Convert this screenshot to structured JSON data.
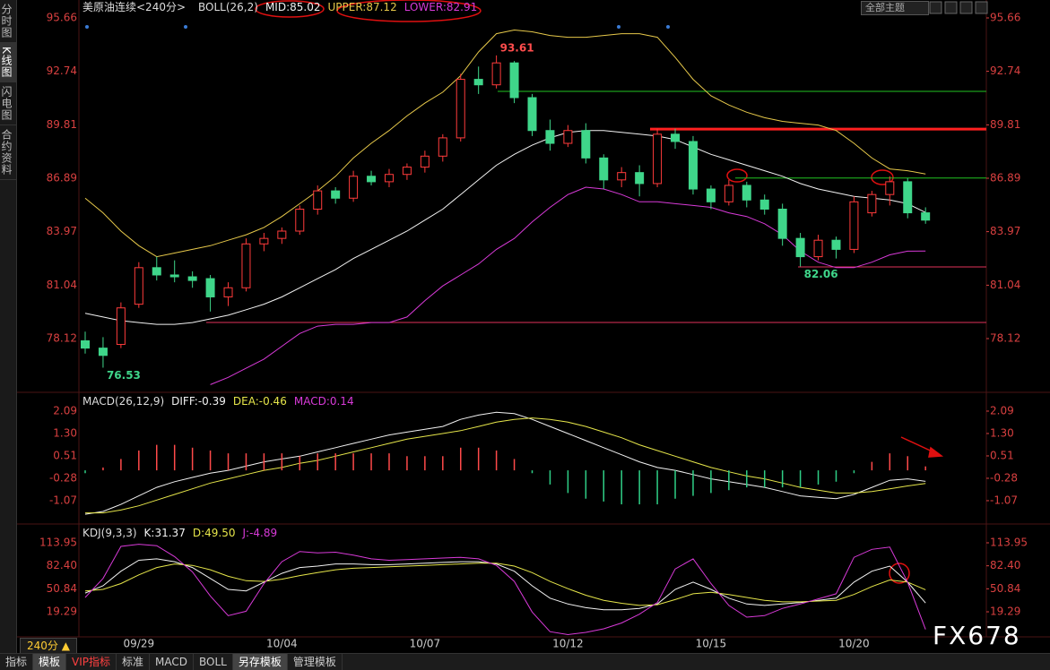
{
  "chart_data": [
    {
      "type": "candlestick",
      "title": "美原油连续<240分>",
      "indicator": "BOLL(26,2)",
      "x": [
        null,
        null,
        null,
        "09/29",
        null,
        null,
        null,
        null,
        null,
        null,
        null,
        "10/04",
        null,
        null,
        null,
        null,
        null,
        null,
        null,
        "10/07",
        null,
        null,
        null,
        null,
        null,
        null,
        null,
        "10/12",
        null,
        null,
        null,
        null,
        null,
        null,
        null,
        "10/15",
        null,
        null,
        null,
        null,
        null,
        null,
        null,
        "10/20",
        null,
        null,
        null,
        null
      ],
      "open": [
        78.0,
        77.6,
        77.8,
        80.0,
        82.0,
        81.6,
        81.5,
        81.4,
        80.4,
        80.9,
        83.3,
        83.6,
        84.0,
        85.2,
        86.2,
        85.8,
        87.0,
        86.7,
        87.1,
        87.5,
        88.1,
        89.1,
        92.3,
        92.0,
        93.2,
        91.3,
        89.5,
        88.8,
        89.5,
        88.0,
        86.8,
        87.2,
        86.6,
        89.3,
        88.9,
        86.3,
        85.6,
        86.5,
        85.7,
        85.2,
        83.6,
        82.6,
        83.5,
        83.0,
        85.0,
        86.0,
        86.7,
        85.0
      ],
      "high": [
        78.5,
        78.2,
        80.1,
        82.3,
        82.6,
        82.4,
        81.8,
        81.6,
        81.2,
        83.6,
        83.9,
        84.2,
        85.4,
        86.5,
        86.4,
        87.3,
        87.3,
        87.4,
        87.7,
        88.4,
        89.3,
        92.6,
        93.0,
        93.61,
        93.3,
        91.5,
        90.1,
        89.8,
        89.9,
        88.2,
        87.5,
        87.6,
        89.6,
        89.6,
        89.2,
        86.5,
        86.8,
        86.7,
        86.0,
        85.5,
        83.9,
        83.8,
        83.7,
        85.9,
        86.2,
        87.0,
        86.9,
        85.3
      ],
      "low": [
        77.3,
        76.53,
        77.6,
        79.8,
        81.3,
        81.2,
        80.9,
        79.6,
        79.9,
        80.7,
        82.9,
        83.3,
        83.8,
        84.9,
        85.5,
        85.6,
        86.5,
        86.4,
        86.8,
        87.2,
        87.8,
        88.9,
        91.5,
        91.8,
        91.0,
        89.2,
        88.4,
        88.6,
        87.7,
        86.3,
        86.4,
        85.9,
        86.4,
        88.5,
        86.0,
        85.2,
        85.4,
        85.3,
        84.9,
        83.2,
        82.06,
        82.4,
        82.5,
        82.8,
        84.8,
        85.4,
        84.7,
        84.4
      ],
      "close": [
        77.6,
        77.2,
        79.8,
        82.0,
        81.6,
        81.5,
        81.3,
        80.4,
        80.9,
        83.3,
        83.6,
        84.0,
        85.2,
        86.2,
        85.8,
        87.0,
        86.7,
        87.1,
        87.5,
        88.1,
        89.1,
        92.3,
        92.0,
        93.2,
        91.3,
        89.5,
        88.8,
        89.5,
        88.0,
        86.8,
        87.2,
        86.6,
        89.3,
        88.9,
        86.3,
        85.6,
        86.5,
        85.7,
        85.2,
        83.6,
        82.6,
        83.5,
        83.0,
        85.6,
        86.0,
        86.7,
        85.0,
        84.6
      ],
      "up_color": "#ff3b3b",
      "down_color": "#3fd68a",
      "high_low_labels": [
        {
          "index": 23,
          "field": "high",
          "color": "#ff4d4d"
        },
        {
          "index": 1,
          "field": "low",
          "color": "#3fd68a"
        },
        {
          "index": 40,
          "field": "low",
          "color": "#3fd68a"
        }
      ],
      "series": [
        {
          "name": "MID:",
          "color": "#f2f2f2",
          "values": [
            79.5,
            79.3,
            79.1,
            79.0,
            78.9,
            78.9,
            79.0,
            79.2,
            79.4,
            79.7,
            80.0,
            80.4,
            80.9,
            81.4,
            81.9,
            82.5,
            83.0,
            83.5,
            84.0,
            84.6,
            85.2,
            86.0,
            86.8,
            87.6,
            88.2,
            88.7,
            89.1,
            89.4,
            89.5,
            89.5,
            89.4,
            89.3,
            89.2,
            89.0,
            88.6,
            88.2,
            87.9,
            87.6,
            87.3,
            87.0,
            86.6,
            86.3,
            86.1,
            85.9,
            85.8,
            85.7,
            85.5,
            85.02
          ]
        },
        {
          "name": "UPPER:",
          "color": "#e6c84a",
          "values": [
            85.8,
            85.0,
            84.0,
            83.2,
            82.6,
            82.8,
            83.0,
            83.2,
            83.5,
            83.8,
            84.2,
            84.8,
            85.5,
            86.2,
            87.0,
            88.0,
            88.8,
            89.5,
            90.3,
            91.0,
            91.6,
            92.5,
            93.8,
            94.8,
            95.0,
            94.9,
            94.7,
            94.6,
            94.6,
            94.7,
            94.8,
            94.8,
            94.6,
            93.5,
            92.3,
            91.4,
            90.9,
            90.5,
            90.2,
            90.0,
            89.9,
            89.8,
            89.5,
            88.8,
            88.0,
            87.4,
            87.3,
            87.12
          ]
        },
        {
          "name": "LOWER:",
          "color": "#d83ad8",
          "values": [
            null,
            null,
            null,
            null,
            null,
            null,
            null,
            75.6,
            76.0,
            76.5,
            77.0,
            77.7,
            78.4,
            78.8,
            78.9,
            78.9,
            79.0,
            79.0,
            79.3,
            80.2,
            81.0,
            81.6,
            82.2,
            83.0,
            83.6,
            84.5,
            85.3,
            86.0,
            86.4,
            86.3,
            86.0,
            85.6,
            85.6,
            85.5,
            85.4,
            85.3,
            85.0,
            84.8,
            84.4,
            83.8,
            82.9,
            82.3,
            82.0,
            82.0,
            82.3,
            82.7,
            82.9,
            82.91
          ]
        }
      ],
      "hlines": [
        {
          "value": 91.64,
          "color": "#22c322",
          "width": 1
        },
        {
          "value": 89.58,
          "color": "#ff2020",
          "width": 3
        },
        {
          "value": 86.9,
          "color": "#22c322",
          "width": 1
        },
        {
          "value": 82.04,
          "color": "#e0325a",
          "width": 1
        },
        {
          "value": 79.0,
          "color": "#e0325a",
          "width": 1
        }
      ],
      "ylim": [
        75.23,
        96.15
      ],
      "yticks": [
        95.66,
        92.74,
        89.81,
        86.89,
        83.97,
        81.04,
        78.12
      ],
      "grid": false
    },
    {
      "type": "line",
      "title": "MACD(26,12,9)",
      "series": [
        {
          "name": "DIFF:",
          "color": "#f2f2f2",
          "values": [
            -1.55,
            -1.45,
            -1.2,
            -0.9,
            -0.6,
            -0.4,
            -0.25,
            -0.1,
            0.0,
            0.15,
            0.3,
            0.4,
            0.5,
            0.65,
            0.8,
            0.95,
            1.1,
            1.25,
            1.35,
            1.45,
            1.55,
            1.8,
            1.95,
            2.05,
            2.0,
            1.8,
            1.55,
            1.3,
            1.05,
            0.8,
            0.55,
            0.3,
            0.1,
            0.0,
            -0.15,
            -0.3,
            -0.4,
            -0.5,
            -0.6,
            -0.75,
            -0.9,
            -0.95,
            -1.0,
            -0.85,
            -0.6,
            -0.35,
            -0.3,
            -0.39
          ]
        },
        {
          "name": "DEA:",
          "color": "#e6e64a",
          "values": [
            -1.5,
            -1.5,
            -1.4,
            -1.25,
            -1.05,
            -0.85,
            -0.65,
            -0.45,
            -0.3,
            -0.15,
            0.0,
            0.1,
            0.25,
            0.35,
            0.5,
            0.65,
            0.8,
            0.95,
            1.1,
            1.2,
            1.3,
            1.4,
            1.55,
            1.7,
            1.8,
            1.85,
            1.8,
            1.7,
            1.55,
            1.35,
            1.15,
            0.9,
            0.7,
            0.5,
            0.3,
            0.1,
            -0.05,
            -0.2,
            -0.3,
            -0.45,
            -0.6,
            -0.7,
            -0.8,
            -0.8,
            -0.75,
            -0.65,
            -0.55,
            -0.46
          ]
        },
        {
          "name": "MACD:",
          "type": "bar",
          "color": "#d83ad8",
          "bar_color": "#ff4a4a",
          "negative_color": "#2fcf86",
          "values": [
            -0.1,
            0.1,
            0.4,
            0.7,
            0.9,
            0.9,
            0.8,
            0.7,
            0.6,
            0.6,
            0.6,
            0.6,
            0.5,
            0.6,
            0.6,
            0.6,
            0.6,
            0.6,
            0.5,
            0.5,
            0.5,
            0.8,
            0.8,
            0.7,
            0.4,
            -0.1,
            -0.5,
            -0.8,
            -1.0,
            -1.1,
            -1.2,
            -1.2,
            -1.2,
            -1.0,
            -0.9,
            -0.8,
            -0.7,
            -0.6,
            -0.6,
            -0.6,
            -0.6,
            -0.5,
            -0.4,
            -0.1,
            0.3,
            0.6,
            0.5,
            0.14
          ]
        }
      ],
      "ylim": [
        -1.83,
        2.69
      ],
      "yticks": [
        2.09,
        {
          "value": 1.3,
          "label": "1.30"
        },
        0.51,
        -0.28,
        -1.07
      ],
      "grid": false
    },
    {
      "type": "line",
      "title": "KDJ(9,3,3)",
      "series": [
        {
          "name": "K:",
          "color": "#f2f2f2",
          "values": [
            45,
            55,
            75,
            90,
            92,
            88,
            80,
            65,
            50,
            48,
            60,
            72,
            80,
            82,
            85,
            85,
            84,
            84,
            85,
            86,
            87,
            88,
            88,
            85,
            75,
            55,
            38,
            30,
            25,
            22,
            22,
            24,
            30,
            50,
            60,
            50,
            38,
            30,
            28,
            30,
            32,
            35,
            38,
            60,
            75,
            82,
            60,
            31.37
          ]
        },
        {
          "name": "D:",
          "color": "#e6e64a",
          "values": [
            48,
            50,
            58,
            70,
            80,
            85,
            83,
            77,
            68,
            62,
            61,
            64,
            69,
            73,
            77,
            79,
            80,
            81,
            82,
            83,
            84,
            85,
            86,
            86,
            82,
            73,
            61,
            51,
            42,
            35,
            31,
            28,
            29,
            36,
            44,
            46,
            43,
            39,
            35,
            33,
            33,
            34,
            35,
            43,
            54,
            63,
            60,
            49.5
          ],
          "value_labels": [
            null,
            null,
            null,
            null,
            null,
            null,
            null,
            null,
            null,
            null,
            null,
            null,
            null,
            null,
            null,
            null,
            null,
            null,
            null,
            null,
            null,
            null,
            null,
            null,
            null,
            null,
            null,
            null,
            null,
            null,
            null,
            null,
            null,
            null,
            null,
            null,
            null,
            null,
            null,
            null,
            null,
            null,
            null,
            null,
            null,
            null,
            null,
            "49.50"
          ]
        },
        {
          "name": "J:",
          "color": "#d83ad8",
          "values": [
            39,
            65,
            109,
            112,
            110,
            95,
            74,
            41,
            14,
            20,
            58,
            88,
            102,
            100,
            101,
            97,
            92,
            90,
            91,
            92,
            93,
            94,
            92,
            83,
            61,
            19,
            -8,
            -12,
            -9,
            -4,
            4,
            16,
            32,
            78,
            92,
            58,
            28,
            12,
            14,
            24,
            30,
            37,
            44,
            94,
            105,
            108,
            60,
            -4.89
          ]
        }
      ],
      "ylim": [
        -15.1,
        137.3
      ],
      "yticks": [
        113.95,
        {
          "value": 82.4,
          "label": "82.40"
        },
        50.84,
        19.29
      ],
      "grid": false
    }
  ],
  "ui": {
    "sidebar": [
      "分时图",
      "K线图",
      "闪电图",
      "合约资料"
    ],
    "theme_select": "全部主题",
    "period": "240分 ▲",
    "tabs": [
      "指标",
      "模板",
      "VIP指标",
      "标准",
      "MACD",
      "BOLL",
      "另存模板",
      "管理模板"
    ],
    "watermark": "FX678"
  }
}
